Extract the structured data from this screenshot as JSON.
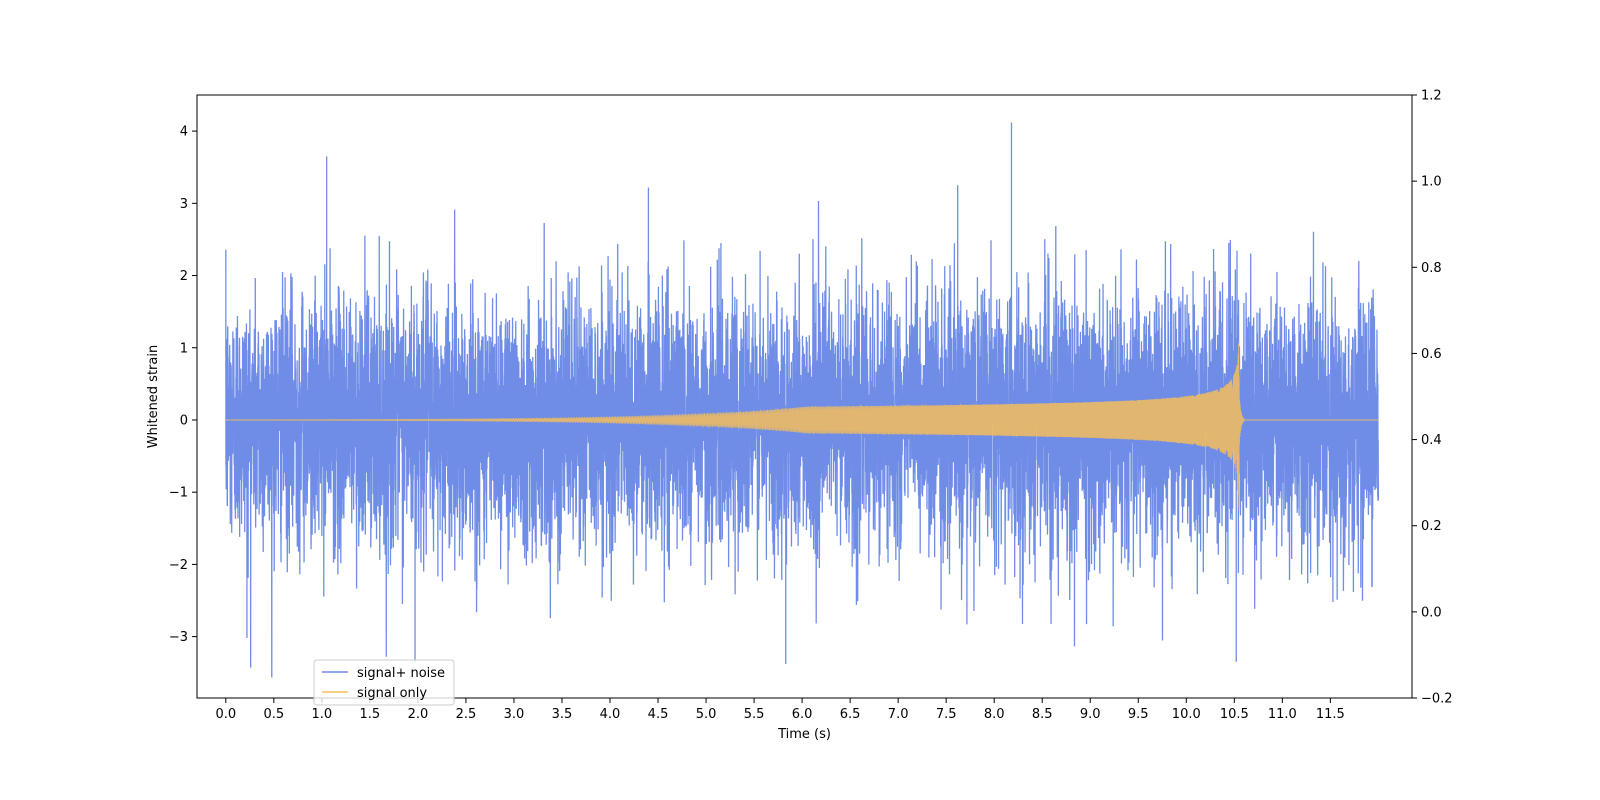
{
  "chart_data": {
    "type": "line",
    "title": "",
    "xlabel": "Time (s)",
    "ylabel": "Whitened strain",
    "xlim": [
      -0.3,
      12.35
    ],
    "ylim": [
      -3.85,
      4.5
    ],
    "y2lim": [
      -0.2,
      1.2
    ],
    "x_ticks": [
      0.0,
      0.5,
      1.0,
      1.5,
      2.0,
      2.5,
      3.0,
      3.5,
      4.0,
      4.5,
      5.0,
      5.5,
      6.0,
      6.5,
      7.0,
      7.5,
      8.0,
      8.5,
      9.0,
      9.5,
      10.0,
      10.5,
      11.0,
      11.5
    ],
    "x_tick_labels": [
      "0.0",
      "0.5",
      "1.0",
      "1.5",
      "2.0",
      "2.5",
      "3.0",
      "3.5",
      "4.0",
      "4.5",
      "5.0",
      "5.5",
      "6.0",
      "6.5",
      "7.0",
      "7.5",
      "8.0",
      "8.5",
      "9.0",
      "9.5",
      "10.0",
      "10.5",
      "11.0",
      "11.5"
    ],
    "y_ticks": [
      -3,
      -2,
      -1,
      0,
      1,
      2,
      3,
      4
    ],
    "y_tick_labels": [
      "−3",
      "−2",
      "−1",
      "0",
      "1",
      "2",
      "3",
      "4"
    ],
    "y2_ticks": [
      -0.2,
      0.0,
      0.2,
      0.4,
      0.6,
      0.8,
      1.0,
      1.2
    ],
    "y2_tick_labels": [
      "−0.2",
      "0.0",
      "0.2",
      "0.4",
      "0.6",
      "0.8",
      "1.0",
      "1.2"
    ],
    "grid": false,
    "legend_position": "bottom-left",
    "series": [
      {
        "name": "signal+ noise",
        "color": "#6f8de6",
        "description_x_range": [
          0.0,
          12.0
        ],
        "noise_std": 0.85,
        "notable_peaks": [
          {
            "x": 1.05,
            "y": 3.65
          },
          {
            "x": 8.18,
            "y": 4.12
          },
          {
            "x": 1.97,
            "y": -3.35
          },
          {
            "x": 5.83,
            "y": -3.38
          },
          {
            "x": 10.52,
            "y": -3.35
          },
          {
            "x": 0.22,
            "y": -3.02
          },
          {
            "x": 4.4,
            "y": 3.22
          },
          {
            "x": 7.62,
            "y": 3.25
          }
        ]
      },
      {
        "name": "signal only",
        "color": "#f5bd5a",
        "x_range": [
          0.0,
          12.0
        ],
        "merger_time": 10.55,
        "peak_amplitude": 1.32,
        "post_merger_value": 0.0
      }
    ]
  }
}
